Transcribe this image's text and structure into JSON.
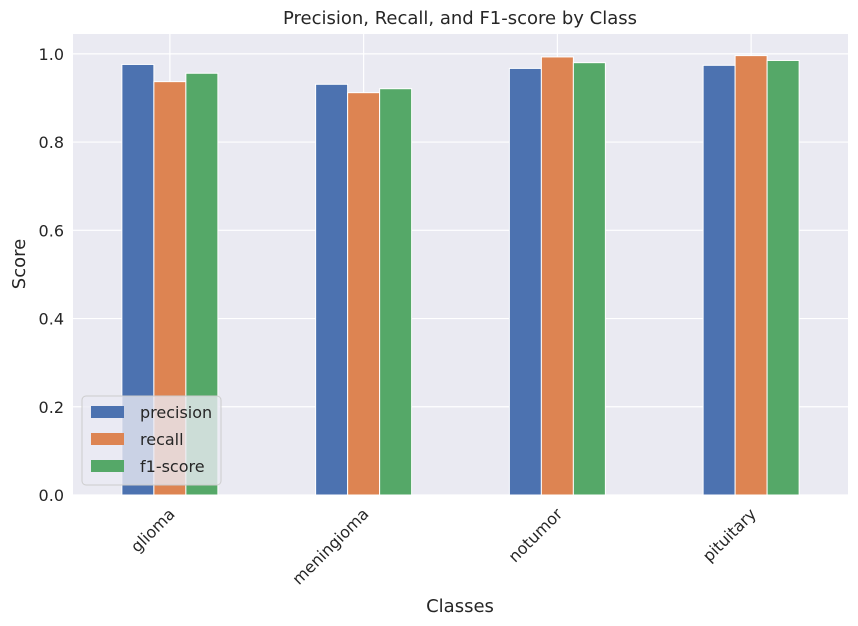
{
  "chart_data": {
    "type": "bar",
    "title": "Precision, Recall, and F1-score by Class",
    "xlabel": "Classes",
    "ylabel": "Score",
    "categories": [
      "glioma",
      "meningioma",
      "notumor",
      "pituitary"
    ],
    "series": [
      {
        "name": "precision",
        "values": [
          0.976,
          0.931,
          0.967,
          0.974
        ]
      },
      {
        "name": "recall",
        "values": [
          0.937,
          0.912,
          0.993,
          0.996
        ]
      },
      {
        "name": "f1-score",
        "values": [
          0.956,
          0.921,
          0.98,
          0.985
        ]
      }
    ],
    "ylim": [
      0,
      1.045
    ],
    "yticks": [
      "0.0",
      "0.2",
      "0.4",
      "0.6",
      "0.8",
      "1.0"
    ],
    "grid": true,
    "legend_position": "lower-left",
    "colors": {
      "precision": "#4c72b0",
      "recall": "#dd8452",
      "f1-score": "#55a868",
      "plot_background": "#eaeaf2",
      "grid": "#ffffff"
    }
  }
}
